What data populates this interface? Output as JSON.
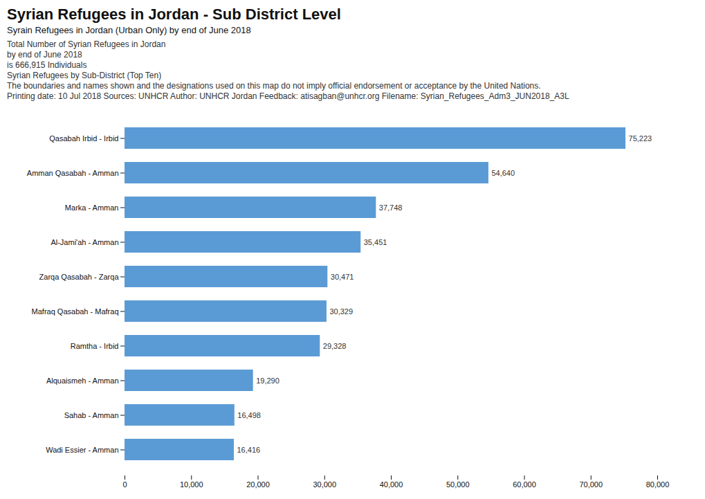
{
  "chart_data": {
    "type": "bar",
    "orientation": "horizontal",
    "title": "Syrian Refugees in Jordan - Sub District Level",
    "subtitle": "Syrain Refugees in Jordan (Urban Only) by end of June 2018",
    "annotations": [
      "Total Number of Syrian Refugees in Jordan",
      "by end of June 2018",
      "is 666,915 Individuals",
      "Syrian Refugees by Sub-District (Top Ten)",
      "The boundaries and names shown and the designations used on this map do not imply official endorsement or acceptance by the United Nations.",
      "Printing date: 10 Jul 2018   Sources: UNHCR   Author: UNHCR Jordan   Feedback: atisagban@unhcr.org   Filename: Syrian_Refugees_Adm3_JUN2018_A3L"
    ],
    "categories": [
      "Qasabah Irbid - Irbid",
      "Amman Qasabah - Amman",
      "Marka - Amman",
      "Al-Jami'ah - Amman",
      "Zarqa Qasabah - Zarqa",
      "Mafraq Qasabah - Mafraq",
      "Ramtha - Irbid",
      "Alquaismeh - Amman",
      "Sahab - Amman",
      "Wadi Essier - Amman"
    ],
    "values": [
      75223,
      54640,
      37748,
      35451,
      30471,
      30329,
      29328,
      19290,
      16498,
      16416
    ],
    "value_labels": [
      "75,223",
      "54,640",
      "37,748",
      "35,451",
      "30,471",
      "30,329",
      "29,328",
      "19,290",
      "16,498",
      "16,416"
    ],
    "data_labels": true,
    "color": "#5b9bd5",
    "xlim": [
      0,
      80000
    ],
    "xticks": [
      0,
      {
        "value": 10000,
        "label": "10,000"
      },
      {
        "value": 20000,
        "label": "20,000"
      },
      {
        "value": 30000,
        "label": "30,000"
      },
      {
        "value": 40000,
        "label": "40,000"
      },
      {
        "value": 50000,
        "label": "50,000"
      },
      {
        "value": 60000,
        "label": "60,000"
      },
      {
        "value": 70000,
        "label": "70,000"
      },
      {
        "value": 80000,
        "label": "80,000"
      }
    ],
    "grid": false
  }
}
